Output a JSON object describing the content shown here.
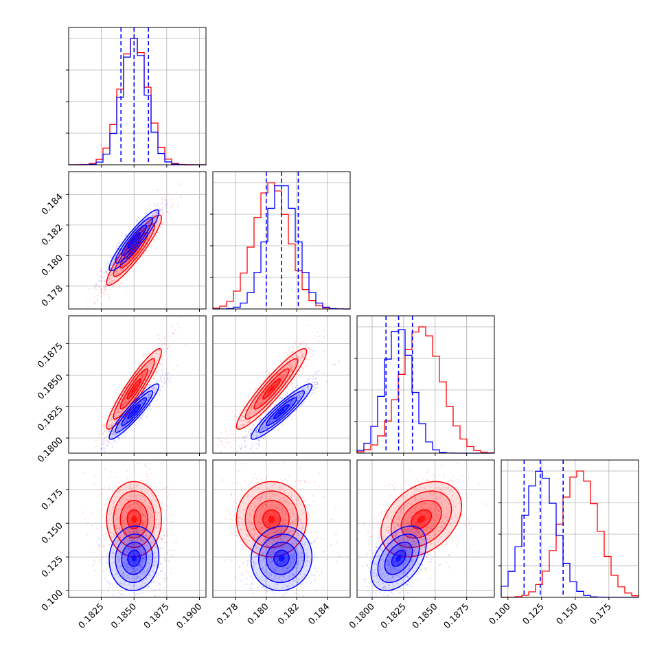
{
  "colors": {
    "series_a": "#ff0000",
    "series_b": "#0000ff",
    "grid": "#b0b0b0",
    "frame": "#000000",
    "quantile_line": "#0000ff"
  },
  "chart_data": {
    "type": "corner",
    "title": "",
    "grid": true,
    "series": [
      {
        "color": "red"
      },
      {
        "color": "blue"
      }
    ],
    "variables": [
      {
        "range": [
          0.18,
          0.1905
        ],
        "ticks": [
          "0.1825",
          "0.1850",
          "0.1875",
          "0.1900"
        ],
        "tick_values": [
          0.1825,
          0.185,
          0.1875,
          0.19
        ]
      },
      {
        "range": [
          0.1765,
          0.1855
        ],
        "ticks": [
          "0.178",
          "0.180",
          "0.182",
          "0.184"
        ],
        "tick_values": [
          0.178,
          0.18,
          0.182,
          0.184
        ]
      },
      {
        "range": [
          0.1788,
          0.1897
        ],
        "ticks": [
          "0.1800",
          "0.1825",
          "0.1850",
          "0.1875"
        ],
        "tick_values": [
          0.18,
          0.1825,
          0.185,
          0.1875
        ]
      },
      {
        "range": [
          0.095,
          0.197
        ],
        "ticks": [
          "0.100",
          "0.125",
          "0.150",
          "0.175"
        ],
        "tick_values": [
          0.1,
          0.125,
          0.15,
          0.175
        ]
      }
    ],
    "stats": [
      {
        "red": {
          "mean": 0.185,
          "sd": 0.00105
        },
        "blue": {
          "mean": 0.185,
          "sd": 0.00095
        }
      },
      {
        "red": {
          "mean": 0.18035,
          "sd": 0.00115
        },
        "blue": {
          "mean": 0.181,
          "sd": 0.001
        }
      },
      {
        "red": {
          "mean": 0.1839,
          "sd": 0.0016
        },
        "blue": {
          "mean": 0.1821,
          "sd": 0.0011
        }
      },
      {
        "red": {
          "mean": 0.153,
          "sd": 0.014
        },
        "blue": {
          "mean": 0.124,
          "sd": 0.012
        }
      }
    ],
    "quantiles_blue": [
      [
        0.184,
        0.185,
        0.1861
      ],
      [
        0.18,
        0.181,
        0.1821
      ],
      [
        0.1811,
        0.1821,
        0.1832
      ],
      [
        0.112,
        0.124,
        0.141
      ]
    ]
  }
}
